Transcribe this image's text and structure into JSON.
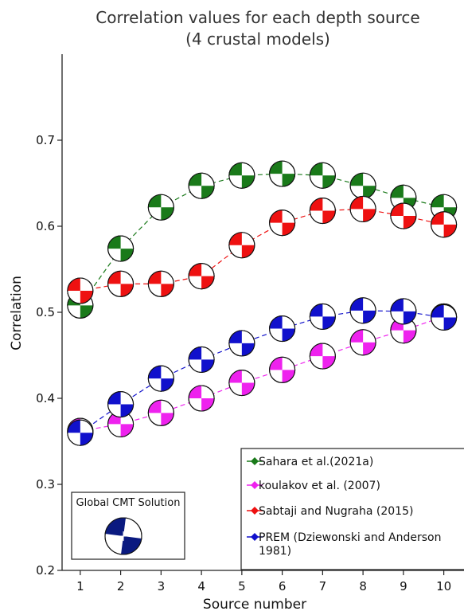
{
  "chart_data": {
    "type": "line",
    "title": [
      "Correlation values for each depth source",
      "(4 crustal models)"
    ],
    "xlabel": "Source number",
    "ylabel": "Correlation",
    "x": [
      1,
      2,
      3,
      4,
      5,
      6,
      7,
      8,
      9,
      10
    ],
    "xlim": [
      0.55,
      10.5
    ],
    "ylim": [
      0.2,
      0.8
    ],
    "yticks": [
      "0.2",
      "0.3",
      "0.4",
      "0.5",
      "0.6",
      "0.7"
    ],
    "xticks": [
      "1",
      "2",
      "3",
      "4",
      "5",
      "6",
      "7",
      "8",
      "9",
      "10"
    ],
    "grid": false,
    "legend_position": "bottom-right",
    "series": [
      {
        "name": "Sahara et al.(2021a)",
        "color": "#1a7a1a",
        "values": [
          0.508,
          0.574,
          0.622,
          0.647,
          0.659,
          0.661,
          0.659,
          0.647,
          0.633,
          0.622
        ]
      },
      {
        "name": "koulakov et al. (2007)",
        "color": "#ee22ee",
        "values": [
          0.362,
          0.37,
          0.383,
          0.4,
          0.418,
          0.433,
          0.449,
          0.465,
          0.479,
          0.495
        ]
      },
      {
        "name": "Sabtaji and Nugraha (2015)",
        "color": "#ee1111",
        "values": [
          0.525,
          0.533,
          0.533,
          0.542,
          0.578,
          0.604,
          0.618,
          0.62,
          0.612,
          0.602
        ]
      },
      {
        "name": "PREM (Dziewonski and Anderson 1981)",
        "color": "#1111cc",
        "legend_lines": [
          "PREM (Dziewonski and Anderson",
          "1981)"
        ],
        "values": [
          0.36,
          0.393,
          0.423,
          0.445,
          0.464,
          0.481,
          0.495,
          0.502,
          0.501,
          0.494
        ]
      }
    ],
    "inset": {
      "label": "Global CMT Solution",
      "color": "#0a1a80"
    }
  }
}
